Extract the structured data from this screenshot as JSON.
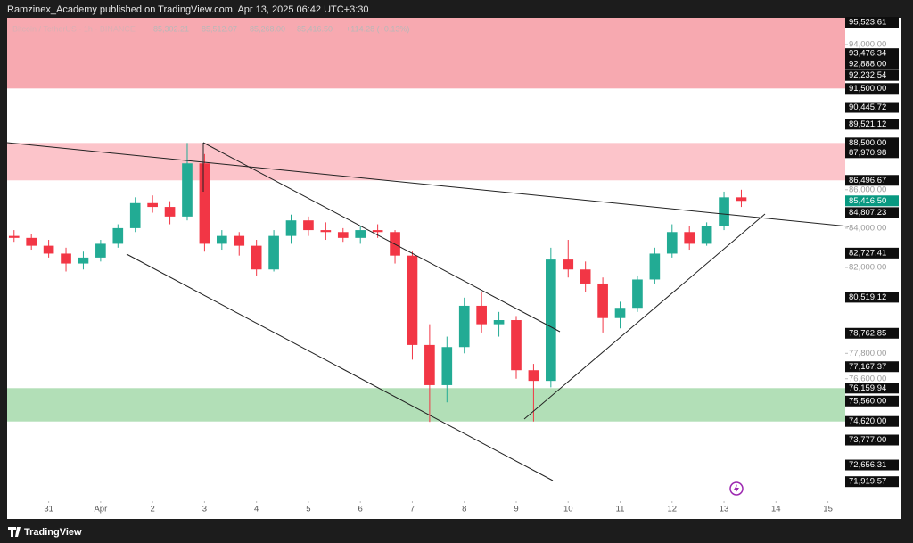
{
  "header": {
    "title": "Ramzinex_Academy published on TradingView.com, Apr 13, 2025 06:42 UTC+3:30"
  },
  "footer": {
    "brand": "TradingView"
  },
  "chart_data": {
    "type": "candlestick",
    "legend": {
      "symbol": "Bitcoin / TetherUS · 1h · BINANCE",
      "open": "85,302.21",
      "high": "85,512.07",
      "low": "85,268.00",
      "close": "85,416.50",
      "change": "+114.28 (+0.13%)"
    },
    "up_color": "#22ab94",
    "down_color": "#f23645",
    "log_scale": true,
    "ylim": [
      70450,
      95550
    ],
    "xlim": [
      -0.4,
      48
    ],
    "yticks": [
      {
        "value": 94000,
        "label": "94,000.00"
      },
      {
        "value": 86000,
        "label": "86,000.00"
      },
      {
        "value": 84000,
        "label": "84,000.00"
      },
      {
        "value": 82000,
        "label": "82,000.00"
      },
      {
        "value": 77800,
        "label": "77,800.00"
      },
      {
        "value": 76600,
        "label": "76,600.00"
      }
    ],
    "xticks": [
      {
        "value": 2,
        "label": "31"
      },
      {
        "value": 5,
        "label": "Apr"
      },
      {
        "value": 8,
        "label": "2"
      },
      {
        "value": 11,
        "label": "3"
      },
      {
        "value": 14,
        "label": "4"
      },
      {
        "value": 17,
        "label": "5"
      },
      {
        "value": 20,
        "label": "6"
      },
      {
        "value": 23,
        "label": "7"
      },
      {
        "value": 26,
        "label": "8"
      },
      {
        "value": 29,
        "label": "9"
      },
      {
        "value": 32,
        "label": "10"
      },
      {
        "value": 35,
        "label": "11"
      },
      {
        "value": 38,
        "label": "12"
      },
      {
        "value": 41,
        "label": "13"
      },
      {
        "value": 44,
        "label": "14"
      },
      {
        "value": 47,
        "label": "15"
      }
    ],
    "zones": [
      {
        "from": 91500,
        "to": 95550,
        "color": "#f7a9b0"
      },
      {
        "from": 86496.67,
        "to": 88500,
        "color": "#fcc4ca"
      },
      {
        "from": 74620,
        "to": 76159.94,
        "color": "#b2dfb7"
      }
    ],
    "price_labels": [
      {
        "value": 95523.61,
        "label": "95,523.61"
      },
      {
        "value": 93476.34,
        "label": "93,476.34"
      },
      {
        "value": 92888,
        "label": "92,888.00"
      },
      {
        "value": 92232.54,
        "label": "92,232.54"
      },
      {
        "value": 91500,
        "label": "91,500.00"
      },
      {
        "value": 90445.72,
        "label": "90,445.72"
      },
      {
        "value": 89521.12,
        "label": "89,521.12"
      },
      {
        "value": 88500,
        "label": "88,500.00"
      },
      {
        "value": 87970.98,
        "label": "87,970.98"
      },
      {
        "value": 86496.67,
        "label": "86,496.67"
      },
      {
        "value": 84807.23,
        "label": "84,807.23"
      },
      {
        "value": 82727.41,
        "label": "82,727.41"
      },
      {
        "value": 80519.12,
        "label": "80,519.12"
      },
      {
        "value": 78762.85,
        "label": "78,762.85"
      },
      {
        "value": 77167.37,
        "label": "77,167.37"
      },
      {
        "value": 76159.94,
        "label": "76,159.94"
      },
      {
        "value": 75560,
        "label": "75,560.00"
      },
      {
        "value": 74620,
        "label": "74,620.00"
      },
      {
        "value": 73777,
        "label": "73,777.00"
      },
      {
        "value": 72656.31,
        "label": "72,656.31"
      },
      {
        "value": 71919.57,
        "label": "71,919.57"
      }
    ],
    "last_price": {
      "value": 85416.5,
      "label": "85,416.50",
      "color": "#089981"
    },
    "candles": [
      [
        83600,
        83900,
        83300,
        83500
      ],
      [
        83500,
        83700,
        82900,
        83100
      ],
      [
        83100,
        83400,
        82500,
        82700
      ],
      [
        82700,
        83000,
        81800,
        82200
      ],
      [
        82200,
        82800,
        81900,
        82500
      ],
      [
        82500,
        83400,
        82300,
        83200
      ],
      [
        83200,
        84200,
        83000,
        84000
      ],
      [
        84000,
        85600,
        83800,
        85300
      ],
      [
        85300,
        85700,
        84800,
        85100
      ],
      [
        85100,
        85400,
        84200,
        84600
      ],
      [
        84600,
        88500,
        84400,
        87400
      ],
      [
        87400,
        87900,
        82800,
        83200
      ],
      [
        83200,
        83900,
        82900,
        83600
      ],
      [
        83600,
        83800,
        82600,
        83100
      ],
      [
        83100,
        83400,
        81600,
        81900
      ],
      [
        81900,
        83900,
        81800,
        83600
      ],
      [
        83600,
        84700,
        83200,
        84400
      ],
      [
        84400,
        84600,
        83600,
        83900
      ],
      [
        83900,
        84300,
        83400,
        83800
      ],
      [
        83800,
        84000,
        83300,
        83500
      ],
      [
        83500,
        84100,
        83200,
        83900
      ],
      [
        83900,
        84200,
        83500,
        83800
      ],
      [
        83800,
        83900,
        82200,
        82600
      ],
      [
        82600,
        82800,
        77500,
        78200
      ],
      [
        78200,
        79200,
        74600,
        76300
      ],
      [
        76300,
        78600,
        75500,
        78100
      ],
      [
        78100,
        80500,
        77800,
        80100
      ],
      [
        80100,
        80800,
        78800,
        79200
      ],
      [
        79200,
        79800,
        78600,
        79400
      ],
      [
        79400,
        79600,
        76600,
        77000
      ],
      [
        77000,
        77300,
        74620,
        76500
      ],
      [
        76500,
        83000,
        76200,
        82400
      ],
      [
        82400,
        83400,
        81500,
        81900
      ],
      [
        81900,
        82300,
        80800,
        81200
      ],
      [
        81200,
        81500,
        78800,
        79500
      ],
      [
        79500,
        80300,
        79000,
        80000
      ],
      [
        80000,
        81600,
        79800,
        81400
      ],
      [
        81400,
        83000,
        81200,
        82700
      ],
      [
        82700,
        84200,
        82500,
        83800
      ],
      [
        83800,
        84100,
        82900,
        83200
      ],
      [
        83200,
        84300,
        83100,
        84100
      ],
      [
        84100,
        85900,
        83900,
        85600
      ],
      [
        85600,
        86000,
        85100,
        85416.5
      ]
    ]
  }
}
